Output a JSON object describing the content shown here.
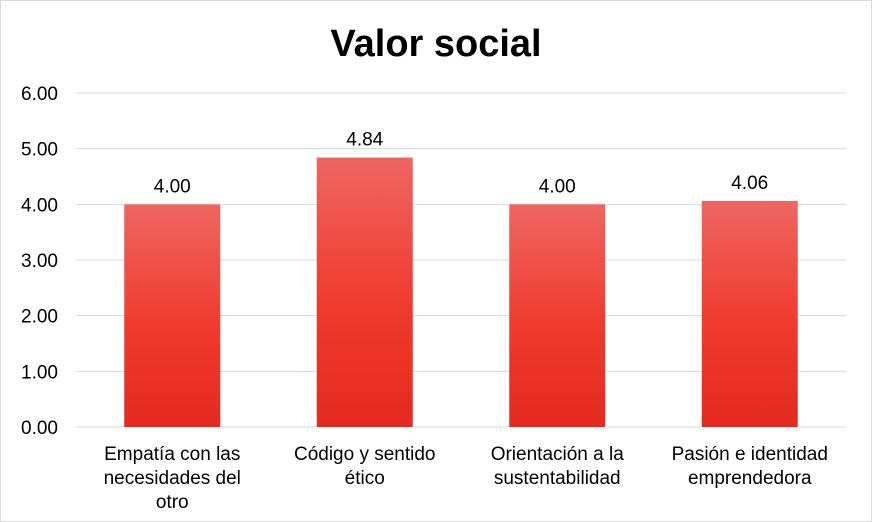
{
  "chart_data": {
    "type": "bar",
    "title": "Valor social",
    "categories": [
      [
        "Empatía con las",
        "necesidades del",
        "otro"
      ],
      [
        "Código y sentido",
        "ético"
      ],
      [
        "Orientación a la",
        "sustentabilidad"
      ],
      [
        "Pasión e identidad",
        "emprendedora"
      ]
    ],
    "values": [
      4.0,
      4.84,
      4.0,
      4.06
    ],
    "data_labels": [
      "4.00",
      "4.84",
      "4.00",
      "4.06"
    ],
    "y_ticks": [
      "0.00",
      "1.00",
      "2.00",
      "3.00",
      "4.00",
      "5.00",
      "6.00"
    ],
    "ylim": [
      0,
      6
    ],
    "grid": true,
    "legend": "none",
    "bar_color_top": "#ee6660",
    "bar_color_bottom": "#e42a1e",
    "gridline_color": "#d9d9d9"
  }
}
